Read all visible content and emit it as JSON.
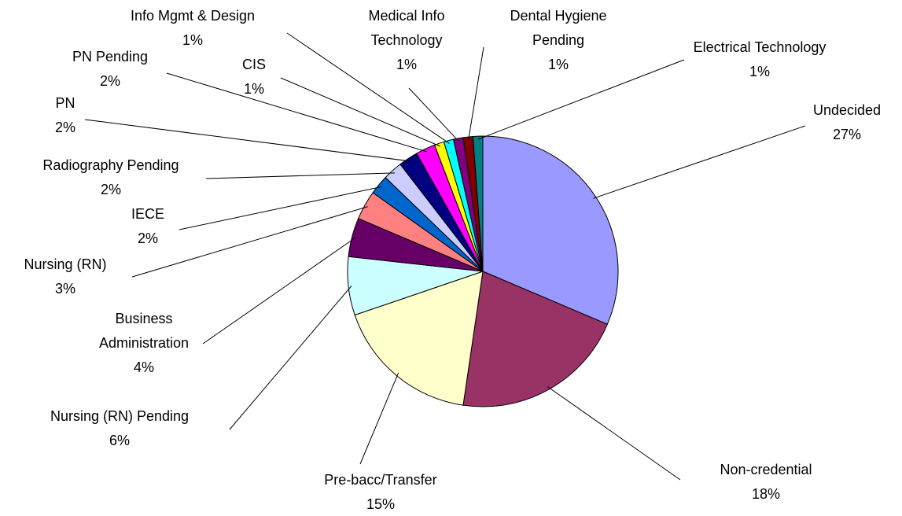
{
  "chart_data": {
    "type": "pie",
    "categories": [
      "Undecided",
      "Non-credential",
      "Pre-bacc/Transfer",
      "Nursing (RN) Pending",
      "Business Administration",
      "Nursing (RN)",
      "IECE",
      "Radiography Pending",
      "PN",
      "PN Pending",
      "CIS",
      "Info Mgmt & Design",
      "Medical Info Technology",
      "Dental Hygiene Pending",
      "Electrical Technology"
    ],
    "values": [
      27,
      18,
      15,
      6,
      4,
      3,
      2,
      2,
      2,
      2,
      1,
      1,
      1,
      1,
      1
    ],
    "value_labels": [
      "27%",
      "18%",
      "15%",
      "6%",
      "4%",
      "3%",
      "2%",
      "2%",
      "2%",
      "2%",
      "1%",
      "1%",
      "1%",
      "1%",
      "1%"
    ],
    "colors": [
      "#9999ff",
      "#993366",
      "#ffffcc",
      "#ccffff",
      "#660066",
      "#ff8080",
      "#0066cc",
      "#ccccff",
      "#000080",
      "#ff00ff",
      "#ffff00",
      "#00ffff",
      "#800080",
      "#800000",
      "#008080"
    ]
  }
}
